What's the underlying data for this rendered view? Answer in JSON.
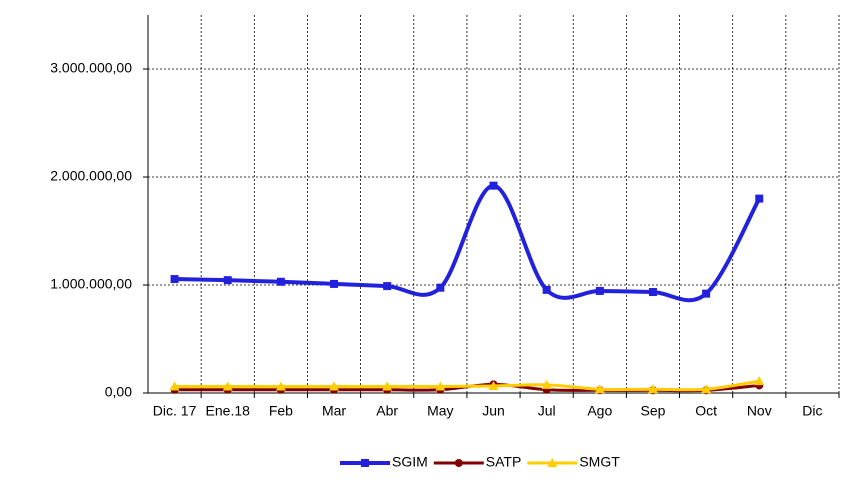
{
  "chart_data": {
    "type": "line",
    "categories": [
      "Dic. 17",
      "Ene.18",
      "Feb",
      "Mar",
      "Abr",
      "May",
      "Jun",
      "Jul",
      "Ago",
      "Sep",
      "Oct",
      "Nov",
      "Dic"
    ],
    "series": [
      {
        "name": "SGIM",
        "color": "#2222dd",
        "marker": "square",
        "values": [
          1055000,
          1045000,
          1030000,
          1010000,
          990000,
          975000,
          1920000,
          955000,
          945000,
          935000,
          920000,
          1800000,
          null
        ]
      },
      {
        "name": "SATP",
        "color": "#800000",
        "marker": "circle",
        "values": [
          30000,
          30000,
          30000,
          30000,
          30000,
          30000,
          80000,
          30000,
          25000,
          25000,
          25000,
          70000,
          null
        ]
      },
      {
        "name": "SMGT",
        "color": "#ffcc00",
        "marker": "triangle",
        "values": [
          60000,
          60000,
          60000,
          60000,
          60000,
          60000,
          65000,
          75000,
          35000,
          35000,
          35000,
          110000,
          null
        ]
      }
    ],
    "ylim": [
      0,
      3500000
    ],
    "yticks": [
      {
        "value": 0,
        "label": "0,00"
      },
      {
        "value": 1000000,
        "label": "1.000.000,00"
      },
      {
        "value": 2000000,
        "label": "2.000.000,00"
      },
      {
        "value": 3000000,
        "label": "3.000.000,00"
      }
    ],
    "grid": true,
    "smooth": true,
    "legend": "bottom"
  }
}
